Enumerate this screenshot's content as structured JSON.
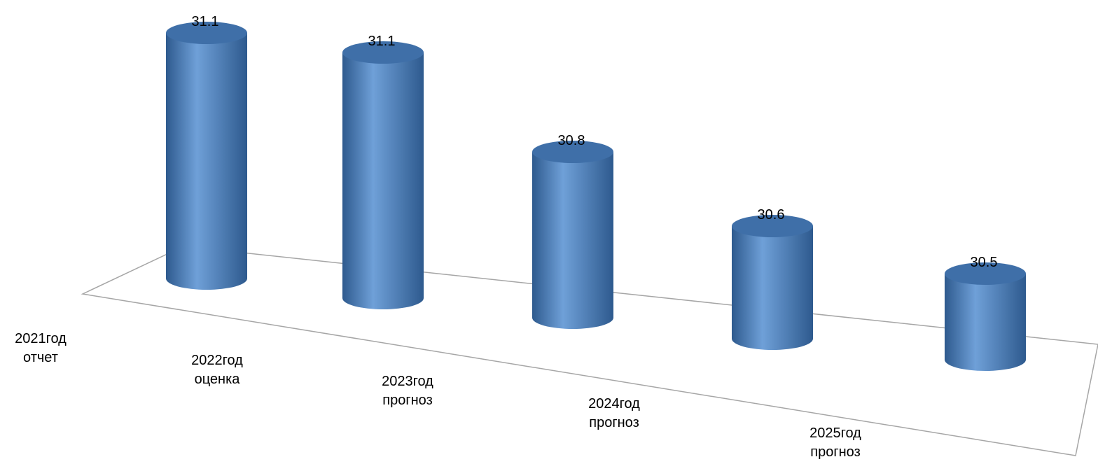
{
  "chart_data": {
    "type": "bar",
    "style": "3d-cylinder",
    "categories": [
      [
        "2021год",
        "отчет"
      ],
      [
        "2022год",
        "оценка"
      ],
      [
        "2023год",
        "прогноз"
      ],
      [
        "2024год",
        "прогноз"
      ],
      [
        "2025год",
        "прогноз"
      ]
    ],
    "values": [
      31.1,
      31.1,
      30.8,
      30.6,
      30.5
    ],
    "value_labels": [
      "31.1",
      "31.1",
      "30.8",
      "30.6",
      "30.5"
    ],
    "colors": {
      "bar": "#4f81bd",
      "bar_dark": "#2e5a8e",
      "bar_light": "#6fa0d8",
      "top": "#3f6fa8",
      "floor_line": "#a6a6a6"
    },
    "grid": false,
    "legend": "none"
  }
}
